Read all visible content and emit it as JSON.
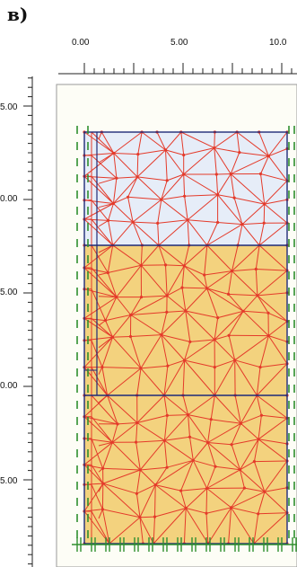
{
  "panel_label": "в)",
  "ruler": {
    "x_tick_labels": [
      "0.00",
      "5.00",
      "10.0"
    ],
    "y_tick_labels": [
      "5.00",
      "0.00",
      "5.00",
      "0.00",
      "5.00"
    ]
  },
  "colors": {
    "background": "#ffffff",
    "canvas_bg": "#fdfdf6",
    "upper_layer_fill": "#e6edf8",
    "lower_layer_fill": "#f3d27e",
    "mesh_lines": "#e43a2a",
    "layer_boundaries": "#1e2a78",
    "fixities": "#2f8f2f"
  },
  "icons": [
    "ruler-top",
    "ruler-left",
    "fixity-marks"
  ]
}
